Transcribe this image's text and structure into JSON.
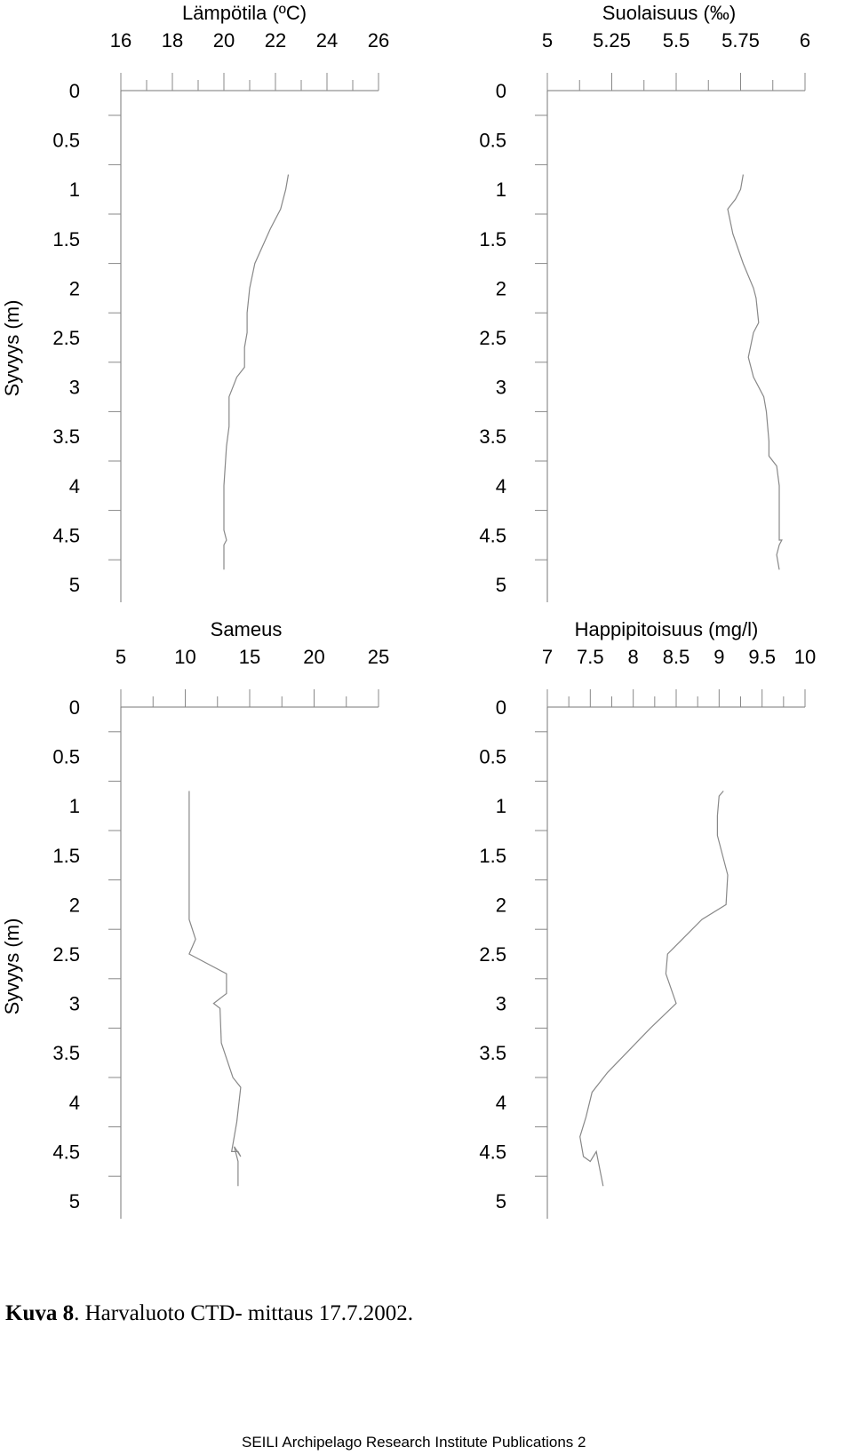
{
  "chart_data": [
    {
      "type": "line",
      "title": "Lämpötila (ºC)",
      "ylabel": "Syvyys (m)",
      "xlim": [
        16,
        26
      ],
      "xticks": [
        "16",
        "18",
        "20",
        "22",
        "24",
        "26"
      ],
      "ylim": [
        0,
        5
      ],
      "yticks": [
        "0",
        "0.5",
        "1",
        "1.5",
        "2",
        "2.5",
        "3",
        "3.5",
        "4",
        "4.5",
        "5"
      ],
      "series": [
        {
          "x": [
            22.5,
            22.4,
            22.2,
            21.8,
            21.2,
            21.0,
            20.9,
            20.9,
            20.8,
            20.8,
            20.5,
            20.2,
            20.2,
            20.1,
            20.0,
            20.0,
            20.0,
            20.1,
            20.0,
            20.0
          ],
          "y": [
            0.85,
            1.0,
            1.2,
            1.4,
            1.75,
            2.0,
            2.25,
            2.45,
            2.6,
            2.8,
            2.9,
            3.1,
            3.4,
            3.6,
            4.0,
            4.4,
            4.45,
            4.55,
            4.6,
            4.85
          ]
        }
      ]
    },
    {
      "type": "line",
      "title": "Suolaisuus (‰)",
      "ylabel": "",
      "xlim": [
        5,
        6
      ],
      "xticks": [
        "5",
        "5.25",
        "5.5",
        "5.75",
        "6"
      ],
      "ylim": [
        0,
        5
      ],
      "yticks": [
        "0",
        "0.5",
        "1",
        "1.5",
        "2",
        "2.5",
        "3",
        "3.5",
        "4",
        "4.5",
        "5"
      ],
      "series": [
        {
          "x": [
            5.76,
            5.75,
            5.73,
            5.7,
            5.72,
            5.76,
            5.8,
            5.81,
            5.82,
            5.8,
            5.78,
            5.8,
            5.84,
            5.85,
            5.86,
            5.86,
            5.89,
            5.9,
            5.9,
            5.9,
            5.91,
            5.9,
            5.89,
            5.9
          ],
          "y": [
            0.85,
            1.0,
            1.1,
            1.2,
            1.45,
            1.75,
            2.0,
            2.1,
            2.35,
            2.45,
            2.7,
            2.9,
            3.1,
            3.25,
            3.55,
            3.7,
            3.8,
            4.0,
            4.3,
            4.55,
            4.55,
            4.6,
            4.7,
            4.85
          ]
        }
      ]
    },
    {
      "type": "line",
      "title": "Sameus",
      "ylabel": "Syvyys (m)",
      "xlim": [
        5,
        25
      ],
      "xticks": [
        "5",
        "10",
        "15",
        "20",
        "25"
      ],
      "ylim": [
        0,
        5
      ],
      "yticks": [
        "0",
        "0.5",
        "1",
        "1.5",
        "2",
        "2.5",
        "3",
        "3.5",
        "4",
        "4.5",
        "5"
      ],
      "series": [
        {
          "x": [
            10.3,
            10.3,
            10.3,
            10.8,
            10.3,
            13.2,
            13.2,
            12.2,
            12.7,
            12.8,
            13.7,
            14.3,
            14.0,
            13.6,
            14.1,
            14.3,
            13.8,
            14.1,
            14.1
          ],
          "y": [
            0.85,
            1.5,
            2.15,
            2.35,
            2.5,
            2.7,
            2.9,
            3.0,
            3.05,
            3.4,
            3.75,
            3.85,
            4.2,
            4.5,
            4.5,
            4.55,
            4.45,
            4.6,
            4.85
          ]
        }
      ]
    },
    {
      "type": "line",
      "title": "Happipitoisuus (mg/l)",
      "ylabel": "",
      "xlim": [
        7,
        10
      ],
      "xticks": [
        "7",
        "7.5",
        "8",
        "8.5",
        "9",
        "9.5",
        "10"
      ],
      "ylim": [
        0,
        5
      ],
      "yticks": [
        "0",
        "0.5",
        "1",
        "1.5",
        "2",
        "2.5",
        "3",
        "3.5",
        "4",
        "4.5",
        "5"
      ],
      "series": [
        {
          "x": [
            9.05,
            9.0,
            8.98,
            8.98,
            9.1,
            9.08,
            8.8,
            8.4,
            8.38,
            8.5,
            8.2,
            7.7,
            7.52,
            7.45,
            7.38,
            7.42,
            7.5,
            7.57,
            7.65
          ],
          "y": [
            0.85,
            0.9,
            1.1,
            1.3,
            1.7,
            2.0,
            2.15,
            2.5,
            2.7,
            3.0,
            3.25,
            3.7,
            3.9,
            4.15,
            4.35,
            4.55,
            4.6,
            4.5,
            4.85
          ]
        }
      ]
    }
  ],
  "caption": {
    "label": "Kuva 8",
    "text": ". Harvaluoto CTD- mittaus 17.7.2002."
  },
  "footer": {
    "text": "SEILI Archipelago Research Institute Publications 2"
  }
}
